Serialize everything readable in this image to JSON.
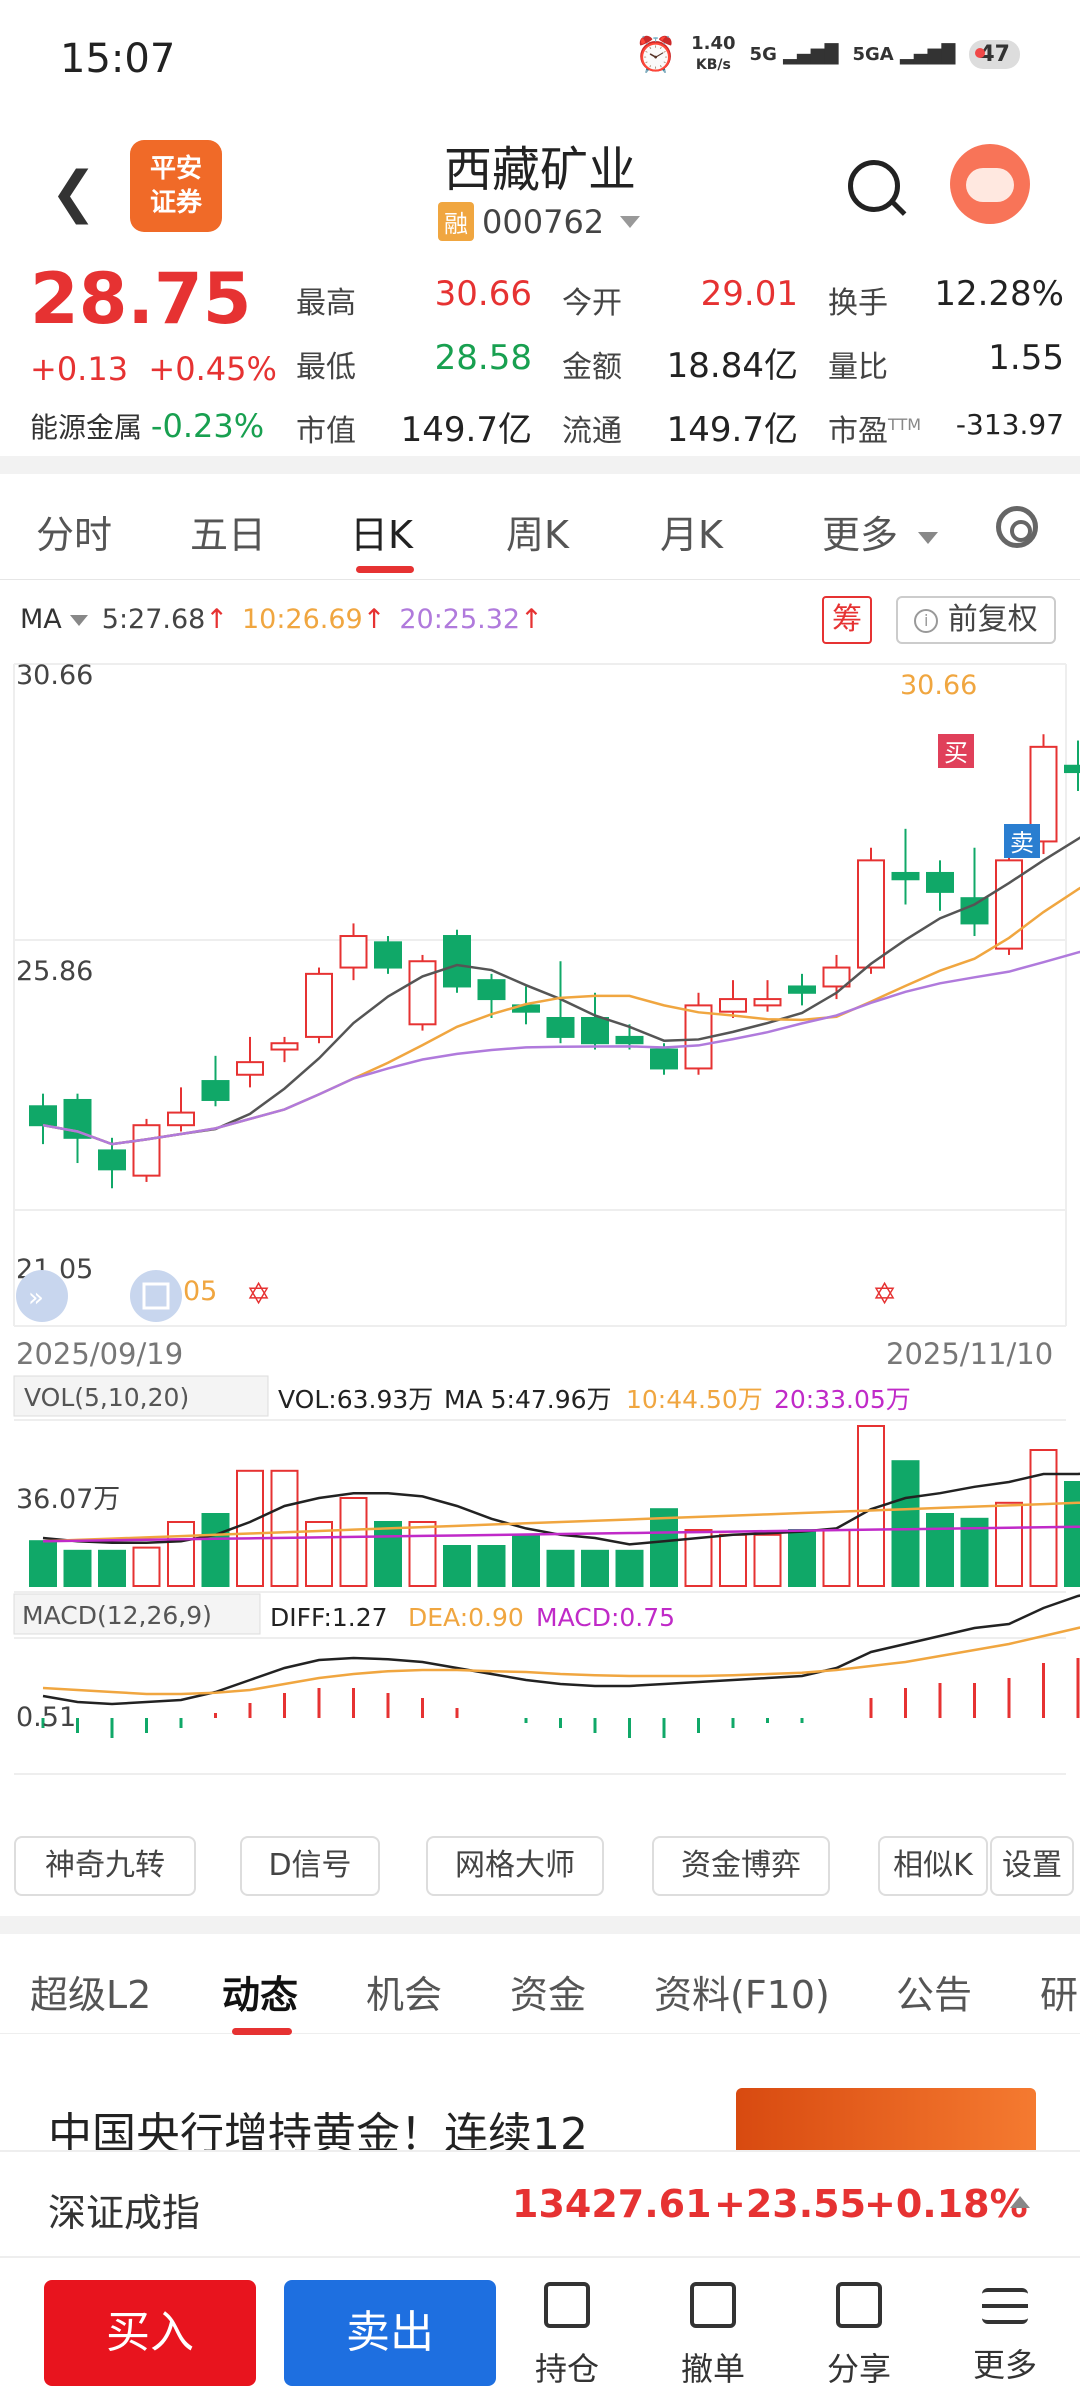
{
  "status_bar": {
    "time": "15:07",
    "speed": "1.40",
    "speed_unit": "KB/s",
    "net1": "5G",
    "net2": "5GA",
    "battery": "47"
  },
  "header": {
    "logo_line1": "平安",
    "logo_line2": "证券",
    "name": "西藏矿业",
    "badge": "融",
    "code": "000762"
  },
  "quote": {
    "price": "28.75",
    "change": "+0.13",
    "change_pct": "+0.45%",
    "sector_label": "能源金属",
    "sector_change": "-0.23%",
    "high_label": "最高",
    "high": "30.66",
    "open_label": "今开",
    "open": "29.01",
    "turnover_label": "换手",
    "turnover": "12.28%",
    "low_label": "最低",
    "low": "28.58",
    "amount_label": "金额",
    "amount": "18.84亿",
    "vol_ratio_label": "量比",
    "vol_ratio": "1.55",
    "mcap_label": "市值",
    "mcap": "149.7亿",
    "float_label": "流通",
    "float": "149.7亿",
    "pe_label": "市盈",
    "pe_sup": "TTM",
    "pe": "-313.97"
  },
  "period_tabs": {
    "t1": "分时",
    "t2": "五日",
    "t3": "日K",
    "t4": "周K",
    "t5": "月K",
    "t6": "更多"
  },
  "ma_legend": {
    "label": "MA",
    "ma5": "5:27.68",
    "ma10": "10:26.69",
    "ma20": "20:25.32",
    "chou": "筹",
    "adjust": "前复权"
  },
  "kline": {
    "y_top": "30.66",
    "y_mid": "25.86",
    "y_low": "21.05",
    "high_mark": "30.66",
    "low_mark": "21.05",
    "date_start": "2025/09/19",
    "date_end": "2025/11/10",
    "buy_tag": "买",
    "sell_tag": "卖"
  },
  "vol": {
    "indicator": "VOL(5,10,20)",
    "vol": "VOL:63.93万",
    "ma5": "MA 5:47.96万",
    "ma10": "10:44.50万",
    "ma20": "20:33.05万",
    "y_label": "36.07万"
  },
  "macd": {
    "indicator": "MACD(12,26,9)",
    "diff": "DIFF:1.27",
    "dea": "DEA:0.90",
    "macd": "MACD:0.75",
    "y_label": "0.51"
  },
  "tools": {
    "b1": "神奇九转",
    "b2": "D信号",
    "b3": "网格大师",
    "b4": "资金博弈",
    "b5": "相似K",
    "b6": "设置"
  },
  "news_tabs": {
    "t1": "超级L2",
    "t2": "动态",
    "t3": "机会",
    "t4": "资金",
    "t5": "资料(F10)",
    "t6": "公告",
    "t7": "研"
  },
  "news": {
    "title": "中国央行增持黄金！连续12"
  },
  "ticker": {
    "name": "深证成指",
    "value": "13427.61",
    "change": "+23.55",
    "pct": "+0.18%"
  },
  "bottom": {
    "buy": "买入",
    "sell": "卖出",
    "n1": "持仓",
    "n2": "撤单",
    "n3": "分享",
    "n4": "更多"
  },
  "colors": {
    "up": "#e63232",
    "down": "#10a868",
    "ma5": "#555555",
    "ma10": "#f0a640",
    "ma20": "#b07adc"
  }
}
